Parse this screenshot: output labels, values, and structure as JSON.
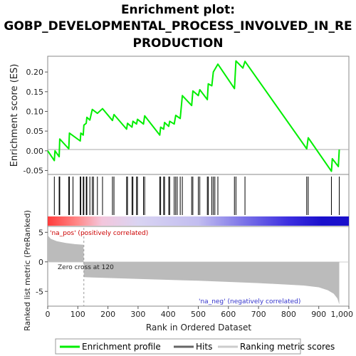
{
  "title_lines": [
    "Enrichment plot:",
    "GOBP_DEVELOPMENTAL_PROCESS_INVOLVED_IN_RE",
    "PRODUCTION"
  ],
  "colors": {
    "es_line": "#00ee00",
    "hits": "#000000",
    "metric_fill": "#bbbbbb",
    "pos_text": "#cc0000",
    "neg_text": "#3333cc"
  },
  "chart_data": {
    "type": "line",
    "es_panel": {
      "ylabel": "Enrichment score (ES)",
      "ylim": [
        -0.06,
        0.24
      ],
      "yticks": [
        -0.05,
        0.0,
        0.05,
        0.1,
        0.15,
        0.2
      ],
      "ytick_labels": [
        "-0.05",
        "0.00",
        "0.05",
        "0.10",
        "0.15",
        "0.20"
      ],
      "points": [
        [
          0,
          0.0
        ],
        [
          22,
          -0.025
        ],
        [
          24,
          0.0
        ],
        [
          38,
          -0.015
        ],
        [
          40,
          0.03
        ],
        [
          70,
          0.005
        ],
        [
          72,
          0.045
        ],
        [
          108,
          0.025
        ],
        [
          110,
          0.045
        ],
        [
          118,
          0.04
        ],
        [
          120,
          0.065
        ],
        [
          128,
          0.07
        ],
        [
          130,
          0.085
        ],
        [
          140,
          0.078
        ],
        [
          148,
          0.105
        ],
        [
          165,
          0.095
        ],
        [
          182,
          0.107
        ],
        [
          215,
          0.077
        ],
        [
          220,
          0.092
        ],
        [
          262,
          0.055
        ],
        [
          265,
          0.07
        ],
        [
          280,
          0.06
        ],
        [
          283,
          0.075
        ],
        [
          295,
          0.068
        ],
        [
          298,
          0.08
        ],
        [
          318,
          0.068
        ],
        [
          322,
          0.089
        ],
        [
          372,
          0.04
        ],
        [
          375,
          0.06
        ],
        [
          385,
          0.055
        ],
        [
          388,
          0.072
        ],
        [
          402,
          0.062
        ],
        [
          405,
          0.075
        ],
        [
          420,
          0.068
        ],
        [
          425,
          0.09
        ],
        [
          440,
          0.082
        ],
        [
          447,
          0.14
        ],
        [
          478,
          0.115
        ],
        [
          482,
          0.152
        ],
        [
          500,
          0.14
        ],
        [
          505,
          0.155
        ],
        [
          530,
          0.13
        ],
        [
          533,
          0.17
        ],
        [
          545,
          0.165
        ],
        [
          550,
          0.2
        ],
        [
          565,
          0.22
        ],
        [
          620,
          0.158
        ],
        [
          625,
          0.228
        ],
        [
          648,
          0.21
        ],
        [
          655,
          0.227
        ],
        [
          860,
          0.005
        ],
        [
          865,
          0.033
        ],
        [
          942,
          -0.052
        ],
        [
          945,
          -0.02
        ],
        [
          965,
          -0.04
        ],
        [
          968,
          0.003
        ]
      ]
    },
    "hits": [
      22,
      38,
      40,
      70,
      72,
      84,
      108,
      110,
      118,
      120,
      128,
      130,
      140,
      148,
      152,
      165,
      182,
      215,
      220,
      262,
      265,
      280,
      283,
      295,
      298,
      318,
      322,
      372,
      375,
      385,
      388,
      402,
      405,
      420,
      425,
      430,
      440,
      447,
      478,
      482,
      500,
      505,
      530,
      533,
      545,
      550,
      555,
      565,
      620,
      625,
      655,
      860,
      865,
      942,
      968
    ],
    "metric_panel": {
      "ylabel": "Ranked list metric (PreRanked)",
      "xlabel": "Rank in Ordered Dataset",
      "xlim": [
        0,
        1000
      ],
      "xticks": [
        0,
        100,
        200,
        300,
        400,
        500,
        600,
        700,
        800,
        900,
        1000
      ],
      "xtick_labels": [
        "0",
        "100",
        "200",
        "300",
        "400",
        "500",
        "600",
        "700",
        "800",
        "900",
        "1,000"
      ],
      "ylim": [
        -7.5,
        6
      ],
      "yticks": [
        -5,
        0,
        5
      ],
      "ytick_labels": [
        "-5",
        "0",
        "5"
      ],
      "profile": [
        [
          0,
          4.5
        ],
        [
          10,
          3.9
        ],
        [
          30,
          3.5
        ],
        [
          60,
          3.2
        ],
        [
          90,
          3.0
        ],
        [
          119,
          2.9
        ],
        [
          120,
          -2.6
        ],
        [
          300,
          -2.9
        ],
        [
          500,
          -3.2
        ],
        [
          700,
          -3.6
        ],
        [
          850,
          -4.0
        ],
        [
          900,
          -4.3
        ],
        [
          930,
          -4.8
        ],
        [
          950,
          -5.4
        ],
        [
          962,
          -6.2
        ],
        [
          968,
          -7.2
        ]
      ],
      "zero_cross_rank": 120,
      "zero_cross_label": "Zero cross at 120",
      "pos_label": "'na_pos' (positively correlated)",
      "neg_label": "'na_neg' (negatively correlated)"
    },
    "legend": [
      "Enrichment profile",
      "Hits",
      "Ranking metric scores"
    ]
  }
}
